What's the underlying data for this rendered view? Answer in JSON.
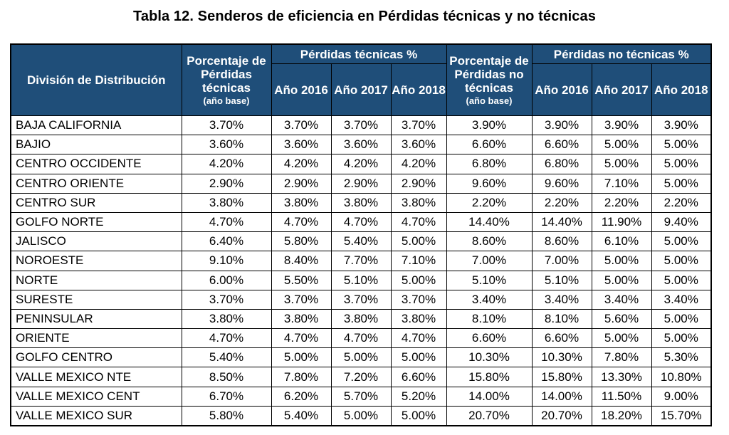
{
  "caption": "Tabla 12. Senderos de eficiencia en Pérdidas técnicas y no técnicas",
  "header": {
    "division": "División de Distribución",
    "pt_base_line1": "Porcentaje de Pérdidas técnicas",
    "pt_base_line2": "(año base)",
    "pt_group": "Pérdidas técnicas %",
    "pnt_base_line1": "Porcentaje de Pérdidas no técnicas",
    "pnt_base_line2": "(año base)",
    "pnt_group": "Pérdidas no técnicas %",
    "years": [
      "Año 2016",
      "Año 2017",
      "Año 2018"
    ]
  },
  "rows": [
    [
      "BAJA CALIFORNIA",
      "3.70%",
      "3.70%",
      "3.70%",
      "3.70%",
      "3.90%",
      "3.90%",
      "3.90%",
      "3.90%"
    ],
    [
      "BAJIO",
      "3.60%",
      "3.60%",
      "3.60%",
      "3.60%",
      "6.60%",
      "6.60%",
      "5.00%",
      "5.00%"
    ],
    [
      "CENTRO OCCIDENTE",
      "4.20%",
      "4.20%",
      "4.20%",
      "4.20%",
      "6.80%",
      "6.80%",
      "5.00%",
      "5.00%"
    ],
    [
      "CENTRO ORIENTE",
      "2.90%",
      "2.90%",
      "2.90%",
      "2.90%",
      "9.60%",
      "9.60%",
      "7.10%",
      "5.00%"
    ],
    [
      "CENTRO SUR",
      "3.80%",
      "3.80%",
      "3.80%",
      "3.80%",
      "2.20%",
      "2.20%",
      "2.20%",
      "2.20%"
    ],
    [
      "GOLFO NORTE",
      "4.70%",
      "4.70%",
      "4.70%",
      "4.70%",
      "14.40%",
      "14.40%",
      "11.90%",
      "9.40%"
    ],
    [
      "JALISCO",
      "6.40%",
      "5.80%",
      "5.40%",
      "5.00%",
      "8.60%",
      "8.60%",
      "6.10%",
      "5.00%"
    ],
    [
      "NOROESTE",
      "9.10%",
      "8.40%",
      "7.70%",
      "7.10%",
      "7.00%",
      "7.00%",
      "5.00%",
      "5.00%"
    ],
    [
      "NORTE",
      "6.00%",
      "5.50%",
      "5.10%",
      "5.00%",
      "5.10%",
      "5.10%",
      "5.00%",
      "5.00%"
    ],
    [
      "SURESTE",
      "3.70%",
      "3.70%",
      "3.70%",
      "3.70%",
      "3.40%",
      "3.40%",
      "3.40%",
      "3.40%"
    ],
    [
      "PENINSULAR",
      "3.80%",
      "3.80%",
      "3.80%",
      "3.80%",
      "8.10%",
      "8.10%",
      "5.60%",
      "5.00%"
    ],
    [
      "ORIENTE",
      "4.70%",
      "4.70%",
      "4.70%",
      "4.70%",
      "6.60%",
      "6.60%",
      "5.00%",
      "5.00%"
    ],
    [
      "GOLFO CENTRO",
      "5.40%",
      "5.00%",
      "5.00%",
      "5.00%",
      "10.30%",
      "10.30%",
      "7.80%",
      "5.30%"
    ],
    [
      "VALLE MEXICO NTE",
      "8.50%",
      "7.80%",
      "7.20%",
      "6.60%",
      "15.80%",
      "15.80%",
      "13.30%",
      "10.80%"
    ],
    [
      "VALLE MEXICO CENT",
      "6.70%",
      "6.20%",
      "5.70%",
      "5.20%",
      "14.00%",
      "14.00%",
      "11.50%",
      "9.00%"
    ],
    [
      "VALLE MEXICO SUR",
      "5.80%",
      "5.40%",
      "5.00%",
      "5.00%",
      "20.70%",
      "20.70%",
      "18.20%",
      "15.70%"
    ]
  ]
}
